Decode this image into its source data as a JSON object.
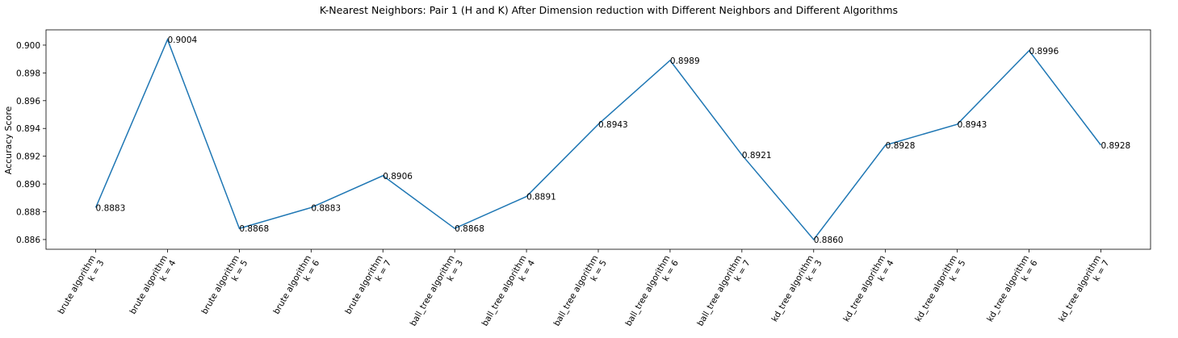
{
  "chart_data": {
    "type": "line",
    "title": "K-Nearest Neighbors: Pair 1 (H and K) After Dimension reduction with Different Neighbors and Different Algorithms",
    "xlabel": "",
    "ylabel": "Accuracy Score",
    "categories": [
      [
        "brute algorithm",
        "k = 3"
      ],
      [
        "brute algorithm",
        "k = 4"
      ],
      [
        "brute algorithm",
        "k = 5"
      ],
      [
        "brute algorithm",
        "k = 6"
      ],
      [
        "brute algorithm",
        "k = 7"
      ],
      [
        "ball_tree algorithm",
        "k = 3"
      ],
      [
        "ball_tree algorithm",
        "k = 4"
      ],
      [
        "ball_tree algorithm",
        "k = 5"
      ],
      [
        "ball_tree algorithm",
        "k = 6"
      ],
      [
        "ball_tree algorithm",
        "k = 7"
      ],
      [
        "kd_tree algorithm",
        "k = 3"
      ],
      [
        "kd_tree algorithm",
        "k = 4"
      ],
      [
        "kd_tree algorithm",
        "k = 5"
      ],
      [
        "kd_tree algorithm",
        "k = 6"
      ],
      [
        "kd_tree algorithm",
        "k = 7"
      ]
    ],
    "values": [
      0.8883,
      0.9004,
      0.8868,
      0.8883,
      0.8906,
      0.8868,
      0.8891,
      0.8943,
      0.8989,
      0.8921,
      0.886,
      0.8928,
      0.8943,
      0.8996,
      0.8928
    ],
    "data_labels": [
      "0.8883",
      "0.9004",
      "0.8868",
      "0.8883",
      "0.8906",
      "0.8868",
      "0.8891",
      "0.8943",
      "0.8989",
      "0.8921",
      "0.8860",
      "0.8928",
      "0.8943",
      "0.8996",
      "0.8928"
    ],
    "ylim": [
      0.8853,
      0.9011
    ],
    "yticks": [
      0.886,
      0.888,
      0.89,
      0.892,
      0.894,
      0.896,
      0.898,
      0.9
    ],
    "ytick_labels": [
      "0.886",
      "0.888",
      "0.890",
      "0.892",
      "0.894",
      "0.896",
      "0.898",
      "0.900"
    ],
    "grid": false,
    "legend": "none",
    "line_color": "#1f77b4"
  }
}
